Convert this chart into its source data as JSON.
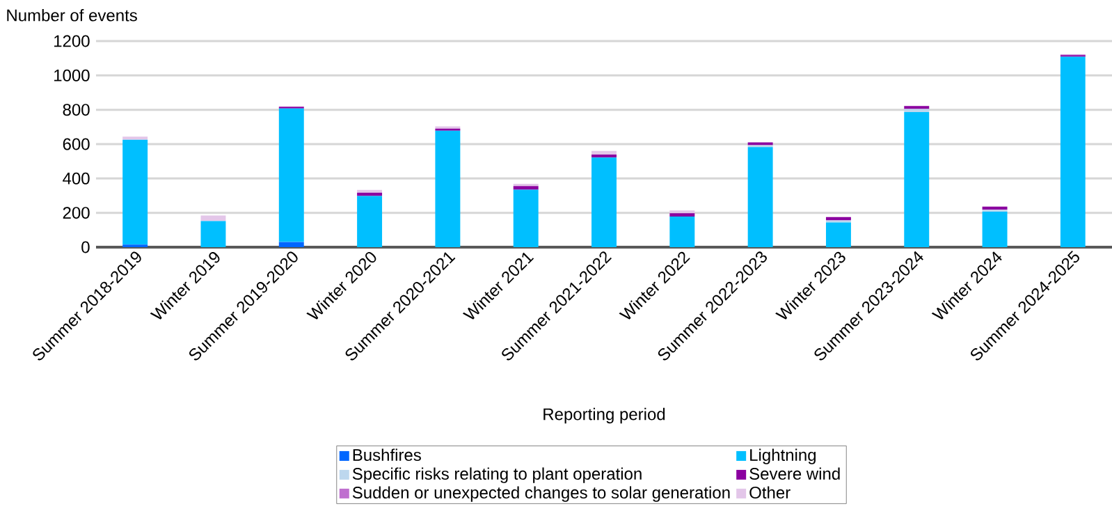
{
  "chart_data": {
    "type": "bar",
    "stacked": true,
    "xlabel": "Reporting period",
    "ylabel": "Number of events",
    "categories": [
      "Summer 2018-2019",
      "Winter 2019",
      "Summer 2019-2020",
      "Winter 2020",
      "Summer 2020-2021",
      "Winter 2021",
      "Summer 2021-2022",
      "Winter 2022",
      "Summer 2022-2023",
      "Winter 2023",
      "Summer 2023-2024",
      "Winter 2024",
      "Summer 2024-2025"
    ],
    "series": [
      {
        "name": "Bushfires",
        "color": "#0066ff",
        "values": [
          15,
          0,
          30,
          0,
          0,
          0,
          0,
          0,
          0,
          0,
          0,
          0,
          0
        ]
      },
      {
        "name": "Lightning",
        "color": "#00bfff",
        "values": [
          610,
          152,
          778,
          298,
          678,
          334,
          522,
          178,
          583,
          144,
          786,
          207,
          1109
        ]
      },
      {
        "name": "Specific risks relating to plant operation",
        "color": "#bdd7ee",
        "values": [
          0,
          0,
          0,
          0,
          0,
          0,
          0,
          0,
          11,
          12,
          19,
          11,
          0
        ]
      },
      {
        "name": "Severe wind",
        "color": "#8b00a0",
        "values": [
          0,
          0,
          10,
          19,
          12,
          22,
          17,
          20,
          16,
          19,
          17,
          18,
          9
        ]
      },
      {
        "name": "Sudden or unexpected changes to solar generation",
        "color": "#bf6fcf",
        "values": [
          0,
          0,
          0,
          0,
          0,
          0,
          0,
          0,
          0,
          0,
          0,
          0,
          4
        ]
      },
      {
        "name": "Other",
        "color": "#e3c6e9",
        "values": [
          19,
          32,
          0,
          16,
          13,
          13,
          21,
          16,
          0,
          0,
          0,
          0,
          0
        ]
      }
    ],
    "ylim": [
      0,
      1200
    ],
    "yticks": [
      0,
      200,
      400,
      600,
      800,
      1000,
      1200
    ],
    "grid": "y",
    "legend": "bottom"
  }
}
